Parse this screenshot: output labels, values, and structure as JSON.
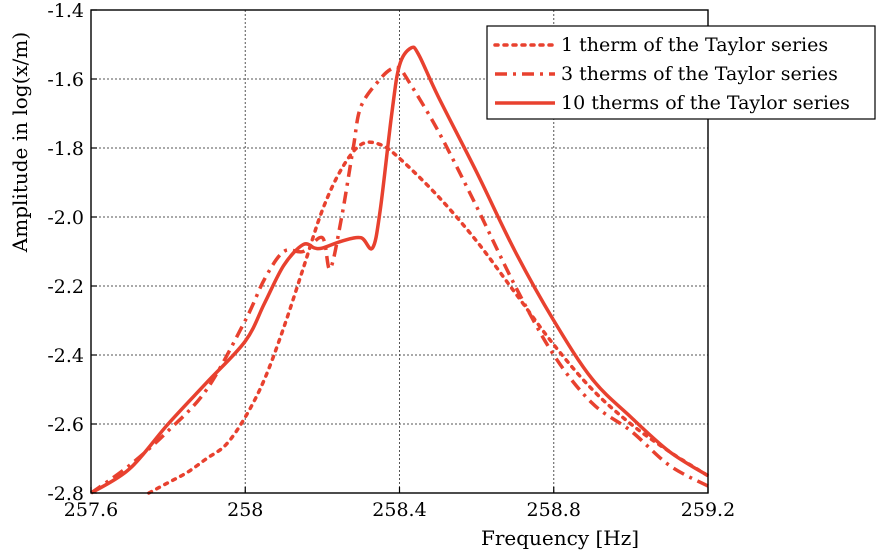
{
  "chart_data": {
    "type": "line",
    "title": "",
    "xlabel": "Frequency [Hz]",
    "ylabel": "Amplitude in log(x/m)",
    "xlim": [
      257.6,
      259.2
    ],
    "ylim": [
      -2.8,
      -1.4
    ],
    "x_ticks": [
      257.6,
      258.0,
      258.4,
      258.8,
      259.2
    ],
    "x_tick_labels": [
      "257.6",
      "258",
      "258.4",
      "258.8",
      "259.2"
    ],
    "y_ticks": [
      -2.8,
      -2.6,
      -2.4,
      -2.2,
      -2.0,
      -1.8,
      -1.6,
      -1.4
    ],
    "y_tick_labels": [
      "-2.8",
      "-2.6",
      "-2.4",
      "-2.2",
      "-2.0",
      "-1.8",
      "-1.6",
      "-1.4"
    ],
    "grid": true,
    "legend_position": "top-right",
    "color": "#e8412f",
    "series": [
      {
        "name": "1 therm of the Taylor series",
        "style": "dotted",
        "points": [
          [
            257.75,
            -2.8
          ],
          [
            257.8,
            -2.77
          ],
          [
            257.85,
            -2.74
          ],
          [
            257.9,
            -2.7
          ],
          [
            257.95,
            -2.66
          ],
          [
            258.0,
            -2.58
          ],
          [
            258.05,
            -2.47
          ],
          [
            258.1,
            -2.32
          ],
          [
            258.15,
            -2.15
          ],
          [
            258.2,
            -1.98
          ],
          [
            258.25,
            -1.86
          ],
          [
            258.3,
            -1.79
          ],
          [
            258.35,
            -1.79
          ],
          [
            258.4,
            -1.83
          ],
          [
            258.5,
            -1.94
          ],
          [
            258.6,
            -2.07
          ],
          [
            258.7,
            -2.22
          ],
          [
            258.8,
            -2.37
          ],
          [
            258.9,
            -2.5
          ],
          [
            259.0,
            -2.6
          ],
          [
            259.1,
            -2.68
          ],
          [
            259.2,
            -2.75
          ]
        ]
      },
      {
        "name": "3 therms of the Taylor series",
        "style": "dashdot",
        "points": [
          [
            257.6,
            -2.8
          ],
          [
            257.7,
            -2.72
          ],
          [
            257.8,
            -2.62
          ],
          [
            257.9,
            -2.5
          ],
          [
            258.0,
            -2.3
          ],
          [
            258.05,
            -2.18
          ],
          [
            258.1,
            -2.1
          ],
          [
            258.15,
            -2.1
          ],
          [
            258.2,
            -2.06
          ],
          [
            258.22,
            -2.15
          ],
          [
            258.25,
            -2.0
          ],
          [
            258.28,
            -1.8
          ],
          [
            258.3,
            -1.68
          ],
          [
            258.35,
            -1.6
          ],
          [
            258.38,
            -1.57
          ],
          [
            258.4,
            -1.57
          ],
          [
            258.42,
            -1.6
          ],
          [
            258.5,
            -1.75
          ],
          [
            258.6,
            -1.97
          ],
          [
            258.7,
            -2.2
          ],
          [
            258.8,
            -2.4
          ],
          [
            258.9,
            -2.54
          ],
          [
            259.0,
            -2.62
          ],
          [
            259.1,
            -2.72
          ],
          [
            259.2,
            -2.78
          ]
        ]
      },
      {
        "name": "10 therms of the Taylor series",
        "style": "solid",
        "points": [
          [
            257.6,
            -2.8
          ],
          [
            257.7,
            -2.73
          ],
          [
            257.8,
            -2.6
          ],
          [
            257.9,
            -2.48
          ],
          [
            258.0,
            -2.36
          ],
          [
            258.05,
            -2.25
          ],
          [
            258.1,
            -2.14
          ],
          [
            258.15,
            -2.08
          ],
          [
            258.18,
            -2.09
          ],
          [
            258.2,
            -2.09
          ],
          [
            258.25,
            -2.07
          ],
          [
            258.3,
            -2.06
          ],
          [
            258.33,
            -2.09
          ],
          [
            258.35,
            -1.98
          ],
          [
            258.38,
            -1.7
          ],
          [
            258.4,
            -1.56
          ],
          [
            258.43,
            -1.51
          ],
          [
            258.45,
            -1.53
          ],
          [
            258.5,
            -1.65
          ],
          [
            258.6,
            -1.87
          ],
          [
            258.7,
            -2.1
          ],
          [
            258.8,
            -2.3
          ],
          [
            258.9,
            -2.47
          ],
          [
            259.0,
            -2.58
          ],
          [
            259.1,
            -2.68
          ],
          [
            259.2,
            -2.75
          ]
        ]
      }
    ]
  }
}
